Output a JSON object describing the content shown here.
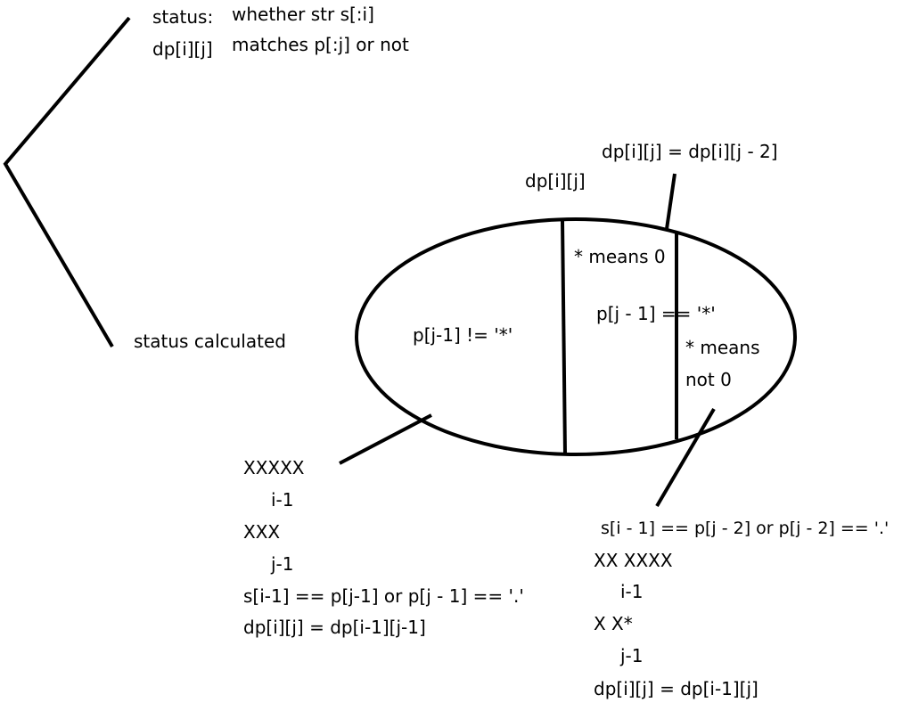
{
  "top_note": {
    "status_label": "status:",
    "dp_label": "dp[i][j]",
    "desc_line1": "whether str s[:i]",
    "desc_line2": "matches p[:j] or not"
  },
  "status_calculated": "status calculated",
  "ellipse": {
    "dp_label": "dp[i][j]",
    "left_case": "p[j-1] != '*'",
    "star_zero": "* means 0",
    "star_case": "p[j - 1] == '*'",
    "star_nonzero_line1": "* means",
    "star_nonzero_line2": "not 0",
    "star_zero_formula": "dp[i][j] = dp[i][j - 2]"
  },
  "left_case_detail": {
    "s_pattern": "XXXXX",
    "s_index": "i-1",
    "p_pattern": "XXX",
    "p_index": "j-1",
    "condition": "s[i-1] == p[j-1] or p[j - 1] == '.'",
    "formula": "dp[i][j] = dp[i-1][j-1]"
  },
  "right_case_detail": {
    "condition": "s[i - 1] == p[j - 2] or p[j - 2] == '.'",
    "s_pattern": "XX XXXX",
    "s_index": "i-1",
    "p_pattern": "X X*",
    "p_index": "j-1",
    "formula": "dp[i][j] = dp[i-1][j]"
  }
}
